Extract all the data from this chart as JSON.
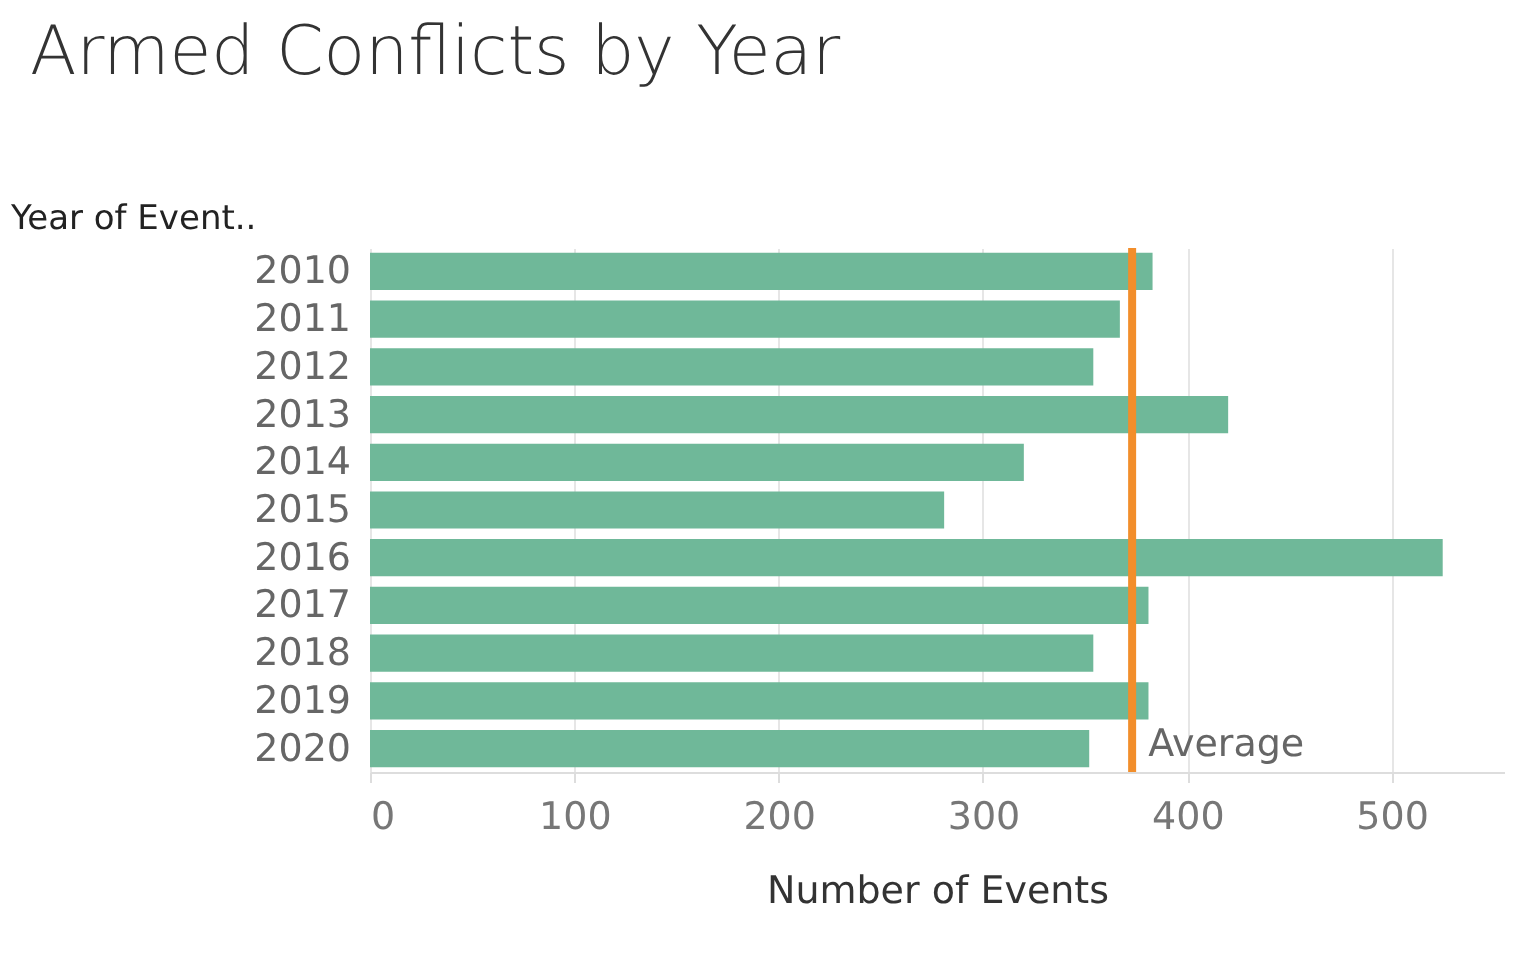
{
  "chart_data": {
    "type": "bar",
    "orientation": "horizontal",
    "title": "Armed Conflicts by Year",
    "xlabel": "Number of Events",
    "ylabel": "Year of Event..",
    "categories": [
      "2010",
      "2011",
      "2012",
      "2013",
      "2014",
      "2015",
      "2016",
      "2017",
      "2018",
      "2019",
      "2020"
    ],
    "values": [
      383,
      367,
      354,
      420,
      320,
      281,
      525,
      381,
      354,
      381,
      352
    ],
    "color": "#6fb899",
    "xlim": [
      0,
      555
    ],
    "xticks": [
      0,
      100,
      200,
      300,
      400,
      500
    ],
    "grid": "x",
    "ref_lines": [
      {
        "axis": "x",
        "value": 373,
        "label": "Average",
        "color": "#f28e2b"
      }
    ]
  }
}
